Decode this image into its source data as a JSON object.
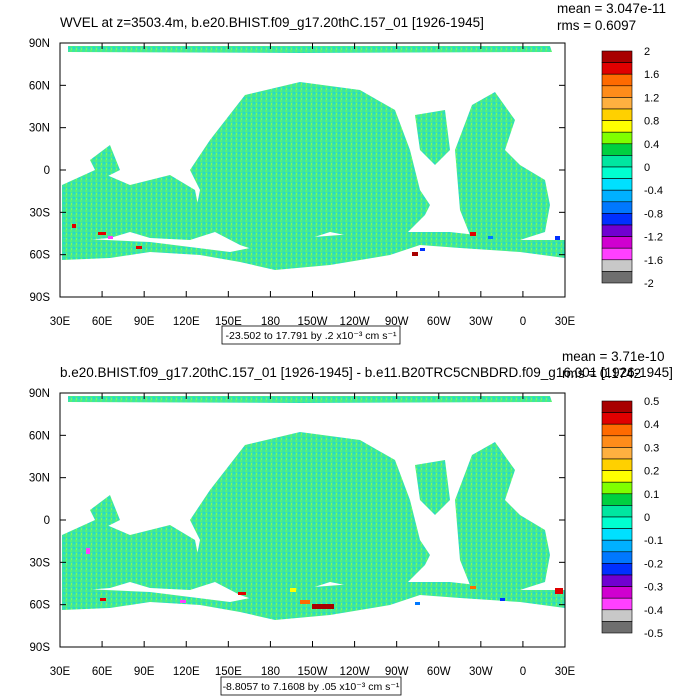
{
  "chart_data": [
    {
      "type": "heatmap",
      "title": "WVEL at z=3503.4m, b.e20.BHIST.f09_g17.20thC.157_01 [1926-1945]",
      "stats": [
        "mean = 3.047e-11",
        "rms = 0.6097"
      ],
      "x_ticks": [
        "30E",
        "60E",
        "90E",
        "120E",
        "150E",
        "180",
        "150W",
        "120W",
        "90W",
        "60W",
        "30W",
        "0",
        "30E"
      ],
      "y_ticks": [
        "90N",
        "60N",
        "30N",
        "0",
        "30S",
        "60S",
        "90S"
      ],
      "xlim": [
        30,
        390
      ],
      "ylim": [
        -90,
        90
      ],
      "colorbar_levels": [
        "2",
        "1.6",
        "1.2",
        "0.8",
        "0.4",
        "0",
        "-0.4",
        "-0.8",
        "-1.2",
        "-1.6",
        "-2"
      ],
      "colorbar_colors": [
        "#a80000",
        "#e00000",
        "#ff6a00",
        "#ff8c1a",
        "#ffb040",
        "#ffd000",
        "#ffff00",
        "#80ff00",
        "#00d040",
        "#00e6a0",
        "#00ffd0",
        "#00e0ff",
        "#00b0ff",
        "#0078ff",
        "#0030ff",
        "#7000d0",
        "#d000d0",
        "#ff40ff",
        "#c8c8c8",
        "#6e6e6e"
      ],
      "range_label": "-23.502 to 17.791 by .2 x10⁻³ cm s⁻¹"
    },
    {
      "type": "heatmap",
      "title": "b.e20.BHIST.f09_g17.20thC.157_01 [1926-1945] - b.e11.B20TRC5CNBDRD.f09_g16.001 [1926-1945]",
      "stats": [
        "mean = 3.71e-10",
        "rms = 0.1742"
      ],
      "x_ticks": [
        "30E",
        "60E",
        "90E",
        "120E",
        "150E",
        "180",
        "150W",
        "120W",
        "90W",
        "60W",
        "30W",
        "0",
        "30E"
      ],
      "y_ticks": [
        "90N",
        "60N",
        "30N",
        "0",
        "30S",
        "60S",
        "90S"
      ],
      "xlim": [
        30,
        390
      ],
      "ylim": [
        -90,
        90
      ],
      "colorbar_levels": [
        "0.5",
        "0.4",
        "0.3",
        "0.2",
        "0.1",
        "0",
        "-0.1",
        "-0.2",
        "-0.3",
        "-0.4",
        "-0.5"
      ],
      "colorbar_colors": [
        "#a80000",
        "#e00000",
        "#ff6a00",
        "#ff8c1a",
        "#ffb040",
        "#ffd000",
        "#ffff00",
        "#80ff00",
        "#00d040",
        "#00e6a0",
        "#00ffd0",
        "#00e0ff",
        "#00b0ff",
        "#0078ff",
        "#0030ff",
        "#7000d0",
        "#d000d0",
        "#ff40ff",
        "#c8c8c8",
        "#6e6e6e"
      ],
      "range_label": "-8.8057 to 7.1608 by .05 x10⁻³ cm s⁻¹"
    }
  ]
}
